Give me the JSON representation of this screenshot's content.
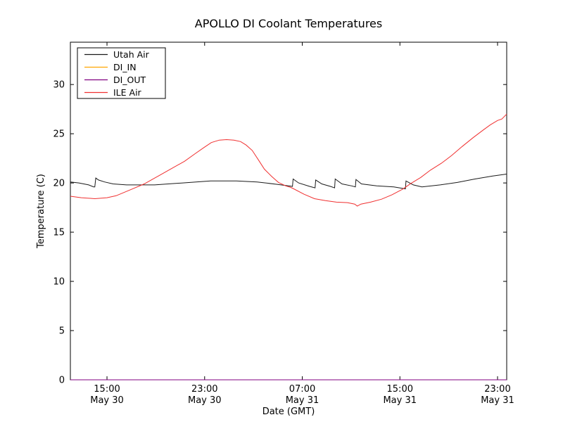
{
  "figure": {
    "background": "#ffffff",
    "spine_color": "#000000",
    "bottom_spine_overlay_color": "#6e4450"
  },
  "chart_data": {
    "type": "line",
    "title": "APOLLO DI Coolant Temperatures",
    "xlabel": "Date (GMT)",
    "ylabel": "Temperature (C)",
    "grid": false,
    "legend_position": "upper-left",
    "xlim_hours": [
      12.0,
      47.75
    ],
    "ylim": [
      0,
      34.3
    ],
    "y_ticks": [
      {
        "value": 0,
        "label": "0"
      },
      {
        "value": 5,
        "label": "5"
      },
      {
        "value": 10,
        "label": "10"
      },
      {
        "value": 15,
        "label": "15"
      },
      {
        "value": 20,
        "label": "20"
      },
      {
        "value": 25,
        "label": "25"
      },
      {
        "value": 30,
        "label": "30"
      }
    ],
    "x_ticks": [
      {
        "hour": 15,
        "time": "15:00",
        "date": "May 30"
      },
      {
        "hour": 23,
        "time": "23:00",
        "date": "May 30"
      },
      {
        "hour": 31,
        "time": "07:00",
        "date": "May 31"
      },
      {
        "hour": 39,
        "time": "15:00",
        "date": "May 31"
      },
      {
        "hour": 47,
        "time": "23:00",
        "date": "May 31"
      }
    ],
    "series": [
      {
        "name": "Utah Air",
        "color": "#1a1a1a",
        "points": [
          [
            12.0,
            20.1
          ],
          [
            12.7,
            20.0
          ],
          [
            13.5,
            19.8
          ],
          [
            13.9,
            19.6
          ],
          [
            14.0,
            19.6
          ],
          [
            14.08,
            20.5
          ],
          [
            14.3,
            20.3
          ],
          [
            14.8,
            20.1
          ],
          [
            15.5,
            19.9
          ],
          [
            16.6,
            19.8
          ],
          [
            18.9,
            19.8
          ],
          [
            21.2,
            20.0
          ],
          [
            23.5,
            20.2
          ],
          [
            25.6,
            20.2
          ],
          [
            27.3,
            20.1
          ],
          [
            29.0,
            19.85
          ],
          [
            30.2,
            19.65
          ],
          [
            30.25,
            20.4
          ],
          [
            30.7,
            20.0
          ],
          [
            31.6,
            19.65
          ],
          [
            32.05,
            19.5
          ],
          [
            32.1,
            20.3
          ],
          [
            32.6,
            19.9
          ],
          [
            33.3,
            19.65
          ],
          [
            33.65,
            19.5
          ],
          [
            33.7,
            20.4
          ],
          [
            34.25,
            19.9
          ],
          [
            35.05,
            19.7
          ],
          [
            35.35,
            19.6
          ],
          [
            35.4,
            20.35
          ],
          [
            35.85,
            19.9
          ],
          [
            37.1,
            19.7
          ],
          [
            38.5,
            19.6
          ],
          [
            39.45,
            19.4
          ],
          [
            39.5,
            20.2
          ],
          [
            40.1,
            19.8
          ],
          [
            40.8,
            19.6
          ],
          [
            42.3,
            19.8
          ],
          [
            43.7,
            20.05
          ],
          [
            45.15,
            20.4
          ],
          [
            46.6,
            20.7
          ],
          [
            47.75,
            20.9
          ]
        ]
      },
      {
        "name": "DI_IN",
        "color": "#ffa500",
        "points": [
          [
            12.0,
            0
          ],
          [
            47.75,
            0
          ]
        ]
      },
      {
        "name": "DI_OUT",
        "color": "#800080",
        "points": [
          [
            12.0,
            0
          ],
          [
            47.75,
            0
          ]
        ]
      },
      {
        "name": "ILE Air",
        "color": "#f03030",
        "points": [
          [
            12.0,
            18.65
          ],
          [
            12.9,
            18.5
          ],
          [
            14.0,
            18.4
          ],
          [
            15.0,
            18.5
          ],
          [
            15.75,
            18.7
          ],
          [
            16.9,
            19.3
          ],
          [
            18.05,
            19.9
          ],
          [
            19.2,
            20.7
          ],
          [
            20.35,
            21.5
          ],
          [
            21.35,
            22.2
          ],
          [
            22.25,
            23.0
          ],
          [
            22.95,
            23.6
          ],
          [
            23.55,
            24.1
          ],
          [
            24.2,
            24.35
          ],
          [
            24.8,
            24.4
          ],
          [
            25.4,
            24.35
          ],
          [
            25.95,
            24.2
          ],
          [
            26.4,
            23.85
          ],
          [
            26.9,
            23.3
          ],
          [
            27.4,
            22.35
          ],
          [
            27.9,
            21.4
          ],
          [
            28.5,
            20.65
          ],
          [
            29.05,
            20.05
          ],
          [
            29.65,
            19.7
          ],
          [
            30.05,
            19.55
          ],
          [
            30.3,
            19.4
          ],
          [
            31.15,
            18.85
          ],
          [
            32.0,
            18.4
          ],
          [
            32.9,
            18.2
          ],
          [
            33.8,
            18.05
          ],
          [
            34.7,
            18.0
          ],
          [
            35.3,
            17.85
          ],
          [
            35.5,
            17.65
          ],
          [
            35.8,
            17.85
          ],
          [
            36.6,
            18.05
          ],
          [
            37.5,
            18.35
          ],
          [
            38.35,
            18.8
          ],
          [
            39.2,
            19.35
          ],
          [
            39.9,
            19.95
          ],
          [
            40.7,
            20.55
          ],
          [
            41.5,
            21.3
          ],
          [
            42.4,
            22.0
          ],
          [
            43.25,
            22.8
          ],
          [
            44.1,
            23.7
          ],
          [
            45.0,
            24.6
          ],
          [
            45.8,
            25.35
          ],
          [
            46.4,
            25.9
          ],
          [
            47.0,
            26.35
          ],
          [
            47.35,
            26.5
          ],
          [
            47.75,
            27.0
          ]
        ]
      }
    ]
  }
}
